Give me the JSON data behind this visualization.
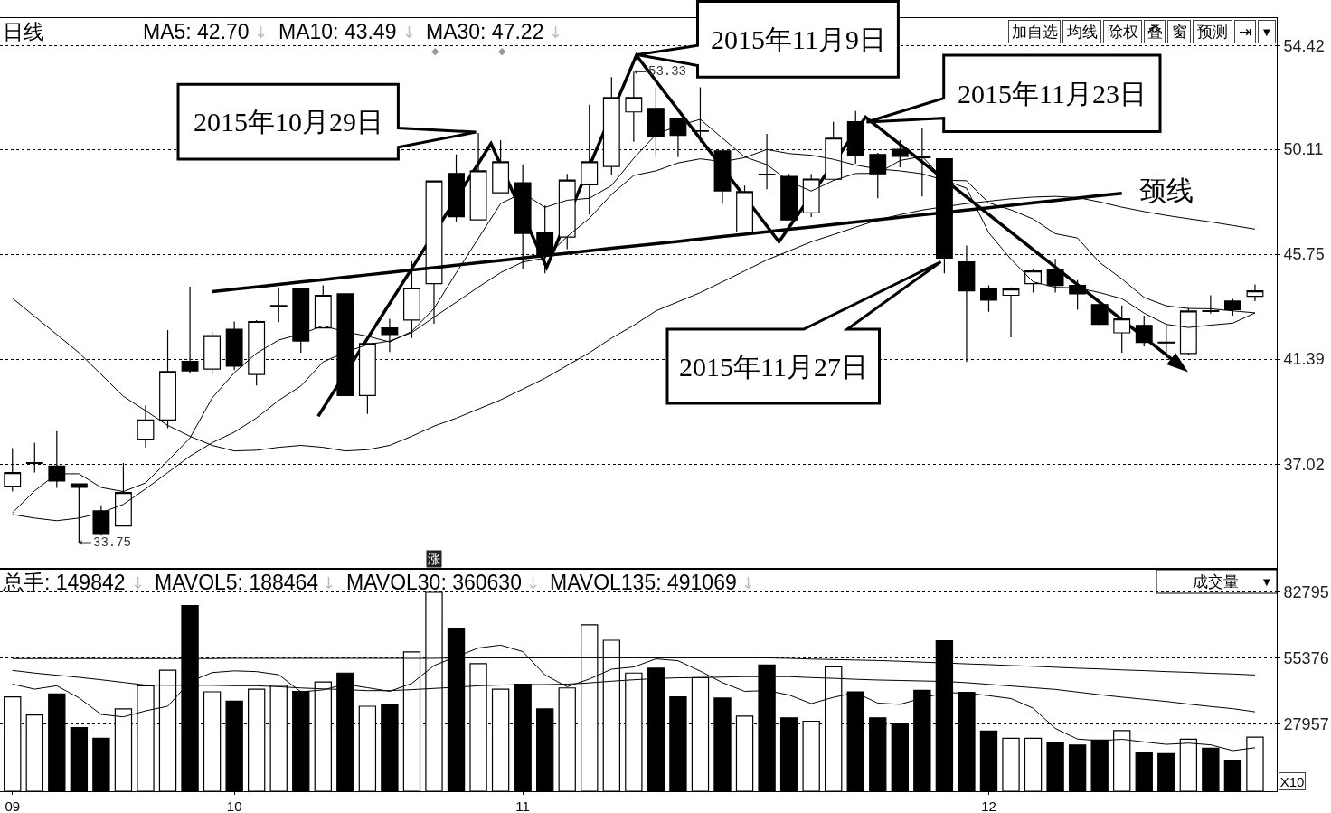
{
  "chart_data": [
    {
      "type": "candlestick",
      "categories": [
        "09",
        null,
        null,
        null,
        null,
        null,
        null,
        null,
        null,
        null,
        "10",
        null,
        null,
        null,
        null,
        null,
        null,
        null,
        null,
        null,
        null,
        null,
        null,
        "11",
        null,
        null,
        null,
        null,
        null,
        null,
        null,
        null,
        null,
        null,
        null,
        null,
        null,
        null,
        null,
        null,
        null,
        null,
        null,
        null,
        "12",
        null,
        null,
        null,
        null,
        null,
        null,
        null,
        null,
        null,
        null,
        null,
        null
      ],
      "ohlc": [
        [
          36.11,
          37.69,
          35.88,
          36.67
        ],
        [
          37.05,
          37.9,
          36.67,
          37.08
        ],
        [
          36.94,
          38.39,
          36.03,
          36.32
        ],
        [
          36.2,
          36.21,
          33.75,
          36.06
        ],
        [
          35.08,
          35.31,
          34.05,
          34.1
        ],
        [
          34.45,
          37.07,
          34.45,
          35.84
        ],
        [
          38.06,
          39.46,
          37.72,
          38.86
        ],
        [
          38.86,
          42.59,
          38.51,
          40.87
        ],
        [
          41.29,
          44.4,
          40.82,
          40.9
        ],
        [
          40.97,
          42.53,
          40.75,
          42.36
        ],
        [
          42.63,
          42.95,
          40.93,
          41.09
        ],
        [
          40.75,
          43.01,
          40.29,
          42.95
        ],
        [
          43.57,
          44.37,
          42.92,
          43.61
        ],
        [
          44.3,
          44.32,
          41.65,
          42.14
        ],
        [
          42.68,
          44.45,
          42.66,
          44.04
        ],
        [
          44.1,
          44.12,
          39.85,
          39.87
        ],
        [
          39.87,
          42.05,
          39.11,
          42.03
        ],
        [
          42.68,
          43.06,
          41.68,
          42.41
        ],
        [
          43.01,
          45.46,
          42.26,
          44.34
        ],
        [
          44.52,
          48.81,
          42.86,
          48.79
        ],
        [
          49.1,
          49.89,
          47.09,
          47.3
        ],
        [
          47.17,
          50.79,
          47.15,
          49.21
        ],
        [
          48.3,
          50.49,
          48.28,
          49.59
        ],
        [
          48.72,
          49.48,
          45.13,
          46.61
        ],
        [
          46.67,
          47.77,
          44.95,
          45.73
        ],
        [
          46.46,
          49.09,
          45.96,
          48.83
        ],
        [
          48.63,
          51.96,
          47.39,
          49.59
        ],
        [
          49.39,
          53.11,
          49.03,
          52.26
        ],
        [
          51.66,
          53.33,
          50.42,
          52.26
        ],
        [
          51.81,
          52.68,
          49.78,
          50.64
        ],
        [
          51.4,
          51.42,
          49.78,
          50.69
        ],
        [
          50.86,
          52.68,
          50.39,
          50.88
        ],
        [
          50.04,
          50.06,
          47.85,
          48.38
        ],
        [
          46.67,
          48.6,
          46.65,
          48.35
        ],
        [
          49.07,
          50.75,
          48.45,
          49.04
        ],
        [
          48.98,
          49.09,
          47.15,
          47.17
        ],
        [
          47.47,
          49.09,
          47.29,
          48.87
        ],
        [
          48.86,
          51.25,
          48.84,
          50.57
        ],
        [
          51.25,
          51.7,
          49.51,
          49.84
        ],
        [
          49.89,
          49.96,
          48.07,
          49.09
        ],
        [
          50.11,
          50.49,
          49.36,
          49.81
        ],
        [
          49.8,
          50.99,
          48.15,
          49.76
        ],
        [
          49.71,
          49.73,
          44.95,
          45.58
        ],
        [
          45.43,
          46.11,
          41.27,
          44.22
        ],
        [
          44.34,
          44.45,
          43.35,
          43.84
        ],
        [
          44.04,
          44.37,
          42.29,
          44.3
        ],
        [
          44.52,
          45.13,
          44.15,
          45.05
        ],
        [
          45.13,
          45.55,
          44.15,
          44.45
        ],
        [
          44.45,
          44.67,
          43.44,
          44.1
        ],
        [
          43.65,
          43.69,
          42.79,
          42.83
        ],
        [
          42.48,
          43.62,
          41.65,
          43.06
        ],
        [
          42.79,
          43.19,
          41.92,
          42.08
        ],
        [
          42.09,
          42.79,
          41.43,
          42.06
        ],
        [
          41.62,
          43.5,
          41.58,
          43.39
        ],
        [
          43.4,
          44.04,
          43.28,
          43.37
        ],
        [
          43.8,
          43.89,
          43.19,
          43.44
        ],
        [
          44.0,
          44.49,
          43.8,
          44.22
        ]
      ],
      "colors": [
        "#ffffff",
        "#000000",
        "#000000",
        "#000000",
        "#000000",
        "#ffffff",
        "#ffffff",
        "#ffffff",
        "#000000",
        "#ffffff",
        "#000000",
        "#ffffff",
        "#000000",
        "#000000",
        "#ffffff",
        "#000000",
        "#ffffff",
        "#000000",
        "#ffffff",
        "#ffffff",
        "#000000",
        "#ffffff",
        "#ffffff",
        "#000000",
        "#000000",
        "#ffffff",
        "#ffffff",
        "#ffffff",
        "#ffffff",
        "#000000",
        "#000000",
        "#000000",
        "#000000",
        "#ffffff",
        "#000000",
        "#000000",
        "#ffffff",
        "#ffffff",
        "#000000",
        "#000000",
        "#000000",
        "#000000",
        "#000000",
        "#000000",
        "#000000",
        "#ffffff",
        "#ffffff",
        "#000000",
        "#000000",
        "#000000",
        "#ffffff",
        "#000000",
        "#000000",
        "#ffffff",
        "#000000",
        "#000000",
        "#ffffff"
      ],
      "series": [
        {
          "type": "line",
          "color": "#000000",
          "values": [
            35.0,
            35.91,
            36.62,
            36.62,
            36.05,
            35.88,
            36.24,
            37.15,
            38.11,
            39.77,
            40.82,
            41.63,
            42.18,
            42.43,
            42.77,
            42.52,
            42.34,
            42.1,
            42.54,
            43.49,
            44.97,
            46.41,
            47.85,
            48.3,
            47.69,
            47.99,
            48.07,
            48.6,
            49.73,
            50.72,
            51.09,
            51.35,
            50.57,
            49.79,
            49.47,
            48.77,
            48.37,
            48.81,
            49.1,
            49.11,
            49.64,
            49.81,
            48.82,
            48.49,
            46.64,
            45.54,
            44.6,
            44.37,
            44.35,
            44.15,
            43.9,
            43.3,
            42.83,
            42.7,
            42.8,
            42.88,
            43.31
          ]
        },
        {
          "type": "line",
          "color": "#000000",
          "values": [
            34.93,
            34.78,
            34.67,
            34.78,
            35.0,
            35.35,
            35.99,
            36.67,
            37.35,
            37.91,
            38.35,
            38.94,
            39.67,
            40.27,
            41.27,
            41.67,
            41.99,
            42.14,
            42.49,
            43.13,
            43.75,
            44.38,
            44.98,
            45.42,
            45.59,
            46.48,
            47.24,
            48.23,
            49.02,
            49.21,
            49.54,
            49.71,
            49.59,
            49.76,
            50.1,
            49.93,
            49.86,
            49.69,
            49.45,
            49.29,
            49.21,
            49.09,
            48.82,
            48.8,
            47.88,
            47.59,
            47.21,
            46.6,
            46.42,
            45.4,
            44.72,
            43.95,
            43.6,
            43.49,
            43.48,
            43.39,
            43.31
          ]
        },
        {
          "type": "line",
          "color": "#000000",
          "values": [
            43.92,
            43.16,
            42.41,
            41.65,
            40.75,
            39.84,
            39.24,
            38.63,
            38.18,
            37.8,
            37.57,
            37.6,
            37.72,
            37.8,
            37.72,
            37.57,
            37.62,
            37.8,
            38.18,
            38.6,
            38.93,
            39.31,
            39.69,
            40.14,
            40.59,
            41.12,
            41.65,
            42.26,
            42.79,
            43.39,
            43.77,
            44.15,
            44.6,
            45.05,
            45.51,
            45.88,
            46.26,
            46.56,
            46.87,
            47.17,
            47.39,
            47.58,
            47.72,
            47.85,
            47.95,
            48.05,
            48.12,
            48.15,
            48.1,
            47.92,
            47.7,
            47.52,
            47.36,
            47.22,
            47.09,
            46.94,
            46.79
          ]
        },
        {
          "type": "line",
          "color": "#000000",
          "values": [
            null,
            null,
            null,
            null,
            null,
            null,
            null,
            null,
            null,
            44.19,
            44.29,
            44.39,
            44.49,
            44.59,
            44.69,
            44.79,
            44.89,
            44.99,
            45.09,
            45.19,
            45.29,
            45.39,
            45.49,
            45.59,
            45.69,
            45.79,
            45.89,
            45.99,
            46.09,
            46.18,
            46.28,
            46.38,
            46.48,
            46.58,
            46.68,
            46.78,
            46.88,
            46.98,
            47.08,
            47.18,
            47.28,
            47.38,
            47.48,
            47.58,
            47.68,
            47.78,
            47.88,
            47.98,
            48.08,
            48.18,
            48.28,
            null,
            null,
            null,
            null,
            null,
            null
          ]
        }
      ],
      "ylim": [
        32.67,
        55.56
      ],
      "yticks": [
        54.42,
        50.11,
        45.75,
        41.39,
        37.02
      ],
      "grid": "y",
      "tick_labels": "y",
      "annotations": [
        "日线",
        "MA5: 42.70",
        "↓",
        "MA10: 43.49",
        "↓",
        "MA30: 47.22",
        "↓",
        "加自选",
        "均线",
        "除权",
        "叠",
        "窗",
        "预测",
        "⇥",
        "▼",
        "◆",
        "◆",
        "2015年11月9日",
        "2015年10月29日",
        "2015年11月23日",
        "颈线",
        "2015年11月27日",
        "53.33",
        "33.75",
        "涨"
      ]
    },
    {
      "type": "bar",
      "categories": [
        "09",
        null,
        null,
        null,
        null,
        null,
        null,
        null,
        null,
        null,
        "10",
        null,
        null,
        null,
        null,
        null,
        null,
        null,
        null,
        null,
        null,
        null,
        null,
        "11",
        null,
        null,
        null,
        null,
        null,
        null,
        null,
        null,
        null,
        null,
        null,
        null,
        null,
        null,
        null,
        null,
        null,
        null,
        null,
        null,
        "12",
        null,
        null,
        null,
        null,
        null,
        null,
        null,
        null,
        null,
        null,
        null,
        null
      ],
      "series": [
        {
          "type": "bar",
          "colors": [
            "#ffffff",
            "#ffffff",
            "#000000",
            "#000000",
            "#000000",
            "#ffffff",
            "#ffffff",
            "#ffffff",
            "#000000",
            "#ffffff",
            "#000000",
            "#ffffff",
            "#ffffff",
            "#000000",
            "#ffffff",
            "#000000",
            "#ffffff",
            "#000000",
            "#ffffff",
            "#ffffff",
            "#000000",
            "#ffffff",
            "#ffffff",
            "#000000",
            "#000000",
            "#ffffff",
            "#ffffff",
            "#ffffff",
            "#ffffff",
            "#000000",
            "#000000",
            "#ffffff",
            "#000000",
            "#ffffff",
            "#000000",
            "#000000",
            "#ffffff",
            "#ffffff",
            "#000000",
            "#000000",
            "#000000",
            "#000000",
            "#000000",
            "#000000",
            "#000000",
            "#ffffff",
            "#ffffff",
            "#000000",
            "#000000",
            "#000000",
            "#ffffff",
            "#000000",
            "#000000",
            "#ffffff",
            "#000000",
            "#000000",
            "#ffffff"
          ],
          "values": [
            39200,
            31700,
            40400,
            26400,
            22000,
            34200,
            43800,
            50300,
            77100,
            41300,
            37400,
            42400,
            44000,
            41500,
            45400,
            49100,
            35300,
            36200,
            57900,
            82600,
            67700,
            53000,
            42400,
            44500,
            34200,
            42900,
            69100,
            62700,
            49100,
            51100,
            39200,
            47200,
            38700,
            31200,
            52400,
            30500,
            29100,
            51700,
            41300,
            30500,
            28000,
            41900,
            62500,
            41100,
            25000,
            22000,
            22000,
            20400,
            19200,
            21300,
            25200,
            16300,
            15600,
            21600,
            17900,
            12900,
            22500
          ]
        },
        {
          "type": "line",
          "color": "#000000",
          "values": [
            44500,
            42400,
            43800,
            38800,
            31900,
            30900,
            33400,
            35300,
            45500,
            49300,
            50000,
            49700,
            48400,
            41300,
            42100,
            44400,
            43000,
            41500,
            44800,
            52200,
            55900,
            59500,
            60700,
            58000,
            48300,
            43400,
            46600,
            50700,
            51600,
            55000,
            54200,
            49900,
            45100,
            41500,
            41800,
            40000,
            36400,
            39000,
            41000,
            36600,
            36100,
            38700,
            40900,
            40800,
            39700,
            38500,
            34500,
            26100,
            21700,
            21000,
            21600,
            20500,
            19500,
            20000,
            19300,
            16900,
            18100
          ]
        },
        {
          "type": "line",
          "color": "#000000",
          "values": [
            50200,
            49100,
            48200,
            47300,
            46300,
            45200,
            44100,
            44000,
            44000,
            44000,
            43800,
            43800,
            43400,
            42900,
            42500,
            42200,
            41800,
            41800,
            42200,
            42700,
            43200,
            43800,
            44100,
            44300,
            44300,
            44500,
            45000,
            45700,
            46300,
            46800,
            47100,
            47200,
            47400,
            47600,
            47600,
            47600,
            47200,
            46900,
            46500,
            46200,
            46000,
            45800,
            45600,
            45100,
            44400,
            43700,
            43000,
            42300,
            41200,
            40100,
            39100,
            38200,
            37300,
            36200,
            35200,
            34300,
            33000
          ]
        },
        {
          "type": "line",
          "color": "#000000",
          "values": [
            55100,
            55100,
            55100,
            55100,
            55100,
            55100,
            55100,
            55100,
            55100,
            55100,
            55200,
            55200,
            55200,
            55200,
            55200,
            55200,
            55200,
            55200,
            55200,
            55200,
            55400,
            55400,
            55400,
            55400,
            55400,
            55400,
            55400,
            55400,
            55400,
            55400,
            55400,
            55400,
            55400,
            55400,
            55400,
            55200,
            54900,
            54700,
            54500,
            54300,
            54000,
            53600,
            53300,
            52900,
            52600,
            52200,
            51900,
            51500,
            51100,
            50800,
            50400,
            50100,
            49700,
            49400,
            49000,
            48700,
            48300
          ]
        }
      ],
      "ylim": [
        0,
        92370
      ],
      "yticks": [
        82795,
        55376,
        27957
      ],
      "grid": "y",
      "annotations": [
        "总手: 149842",
        "↓",
        "MAVOL5: 188464",
        "↓",
        "MAVOL30: 360630",
        "↓",
        "MAVOL135: 491069",
        "↓",
        "成交量",
        "▼",
        "X10"
      ]
    }
  ]
}
